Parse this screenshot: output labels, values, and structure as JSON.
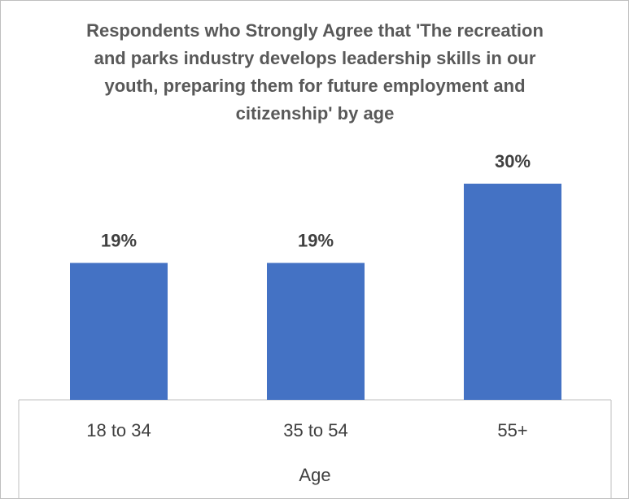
{
  "chart_data": {
    "type": "bar",
    "title": "Respondents who Strongly Agree that 'The recreation and parks industry develops leadership skills in our youth, preparing them for future employment and citizenship' by age",
    "x_label": "Age",
    "categories": [
      "18 to 34",
      "35 to 54",
      "55+"
    ],
    "values": [
      19,
      19,
      30
    ],
    "value_labels": [
      "19%",
      "19%",
      "30%"
    ],
    "color": "#4472c4"
  }
}
